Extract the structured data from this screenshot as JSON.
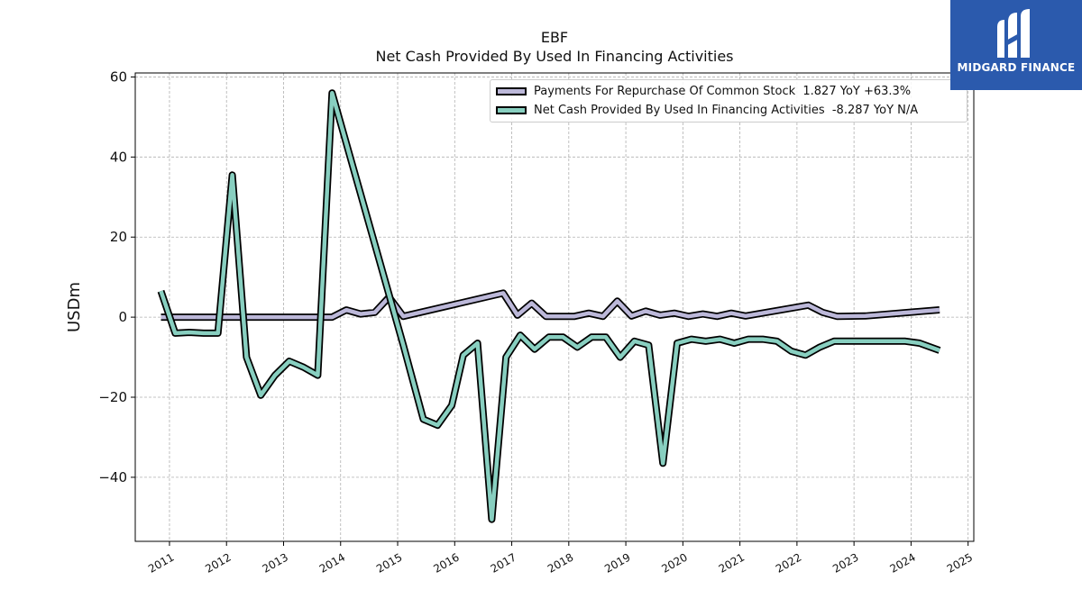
{
  "chart_data": {
    "type": "line",
    "title": "EBF",
    "subtitle": "Net Cash Provided By Used In Financing Activities",
    "xlabel": "",
    "ylabel": "USDm",
    "xlim": [
      2010.4,
      2025.1
    ],
    "ylim": [
      -56,
      61
    ],
    "x_ticks": [
      "2011",
      "2012",
      "2013",
      "2014",
      "2015",
      "2016",
      "2017",
      "2018",
      "2019",
      "2020",
      "2021",
      "2022",
      "2023",
      "2024",
      "2025"
    ],
    "y_ticks": [
      -40,
      -20,
      0,
      20,
      40,
      60
    ],
    "grid": true,
    "legend_position": "top-right",
    "series": [
      {
        "name": "Payments For Repurchase Of Common Stock",
        "legend_label": "Payments For Repurchase Of Common Stock  1.827 YoY +63.3%",
        "color": "#bcb8d9",
        "x": [
          2010.85,
          2011.1,
          2011.35,
          2011.6,
          2011.85,
          2012.1,
          2012.35,
          2012.6,
          2012.85,
          2013.1,
          2013.35,
          2013.6,
          2013.85,
          2014.1,
          2014.35,
          2014.6,
          2014.85,
          2015.1,
          2016.85,
          2017.1,
          2017.35,
          2017.6,
          2017.85,
          2018.1,
          2018.35,
          2018.6,
          2018.85,
          2019.1,
          2019.35,
          2019.6,
          2019.85,
          2020.1,
          2020.35,
          2020.6,
          2020.85,
          2021.1,
          2022.2,
          2022.45,
          2022.7,
          2023.2,
          2024.5
        ],
        "values": [
          0,
          0,
          0,
          0,
          0,
          0,
          0,
          0,
          0,
          0,
          0,
          0,
          0,
          1.8,
          0.8,
          1.2,
          5.0,
          0.2,
          6.0,
          0.5,
          3.5,
          0.2,
          0.2,
          0.2,
          1.0,
          0.2,
          4.0,
          0.3,
          1.5,
          0.5,
          1.0,
          0.2,
          0.8,
          0.2,
          1.0,
          0.3,
          3.0,
          1.2,
          0.2,
          0.3,
          1.83
        ]
      },
      {
        "name": "Net Cash Provided By Used In Financing Activities",
        "legend_label": "Net Cash Provided By Used In Financing Activities  -8.287 YoY N/A",
        "color": "#88cfc0",
        "x": [
          2010.85,
          2011.1,
          2011.35,
          2011.6,
          2011.85,
          2012.1,
          2012.35,
          2012.6,
          2012.85,
          2013.1,
          2013.35,
          2013.6,
          2013.85,
          2015.1,
          2015.45,
          2015.7,
          2015.95,
          2016.15,
          2016.4,
          2016.65,
          2016.9,
          2017.15,
          2017.4,
          2017.65,
          2017.9,
          2018.15,
          2018.4,
          2018.65,
          2018.9,
          2019.15,
          2019.4,
          2019.65,
          2019.9,
          2020.15,
          2020.4,
          2020.65,
          2020.9,
          2021.15,
          2021.4,
          2021.65,
          2021.9,
          2022.15,
          2022.4,
          2022.65,
          2022.9,
          2023.15,
          2023.4,
          2023.65,
          2023.9,
          2024.15,
          2024.5
        ],
        "values": [
          6.5,
          -4.0,
          -3.8,
          -4.0,
          -4.0,
          35.5,
          -10.0,
          -19.5,
          -14.5,
          -11.0,
          -12.5,
          -14.5,
          56.0,
          -7.0,
          -25.5,
          -27.0,
          -22.0,
          -9.5,
          -6.5,
          -50.5,
          -10.0,
          -4.5,
          -8.0,
          -5.0,
          -5.0,
          -7.5,
          -5.0,
          -5.0,
          -10.0,
          -6.0,
          -7.0,
          -36.5,
          -6.5,
          -5.5,
          -6.0,
          -5.5,
          -6.5,
          -5.5,
          -5.5,
          -6.0,
          -8.5,
          -9.5,
          -7.5,
          -6.0,
          -6.0,
          -6.0,
          -6.0,
          -6.0,
          -6.0,
          -6.5,
          -8.3
        ]
      }
    ]
  },
  "logo": {
    "text": "MIDGARD FINANCE",
    "background": "#2b5aad"
  }
}
